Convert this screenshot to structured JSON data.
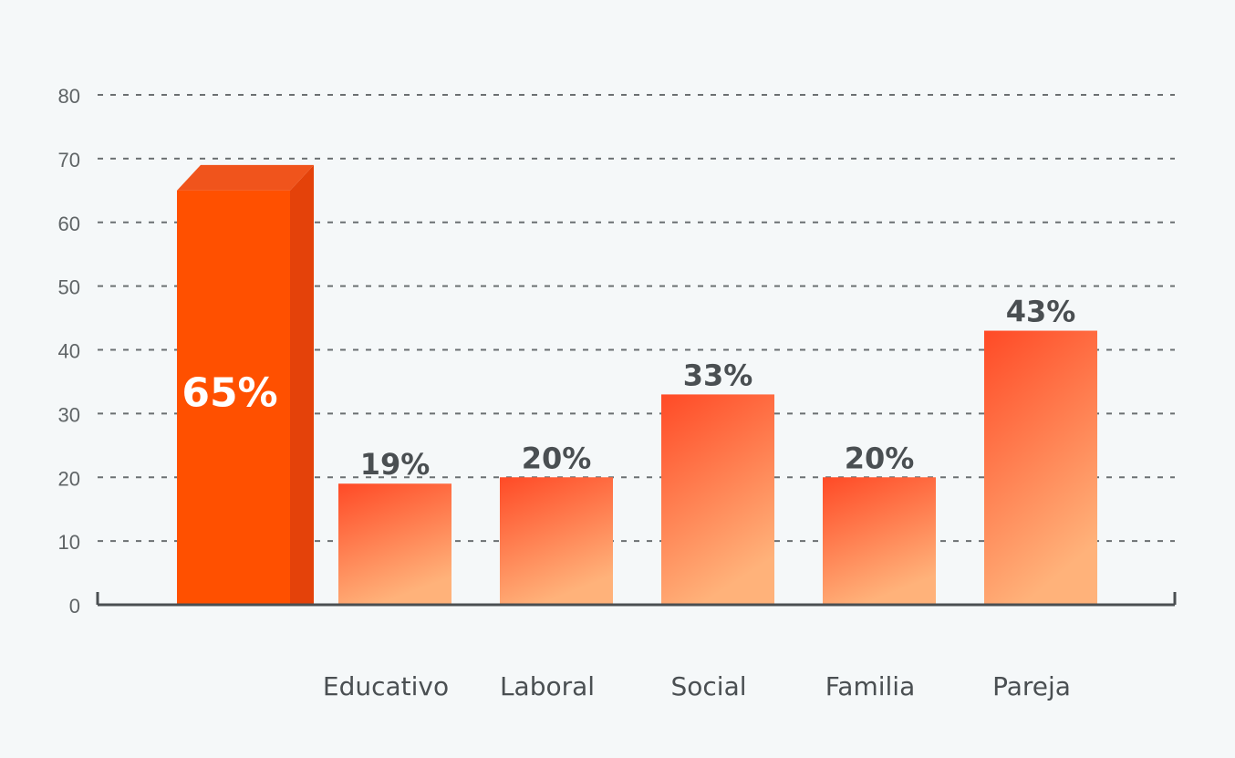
{
  "chart_data": {
    "type": "bar",
    "title": "",
    "xlabel": "",
    "ylabel": "",
    "ylim": [
      0,
      80
    ],
    "yticks": [
      0,
      10,
      20,
      30,
      40,
      50,
      60,
      70,
      80
    ],
    "grid": true,
    "categories": [
      "",
      "Educativo",
      "Laboral",
      "Social",
      "Familia",
      "Pareja"
    ],
    "values": [
      65,
      19,
      20,
      33,
      20,
      43
    ],
    "data_labels": [
      "65%",
      "19%",
      "20%",
      "33%",
      "20%",
      "43%"
    ],
    "highlight_index": 0
  },
  "colors": {
    "background": "#f5f8f9",
    "highlight_front": "#ff5000",
    "highlight_side": "#e4420a",
    "highlight_top": "#f0541c",
    "bar_gradient_top": "#ff4a26",
    "bar_gradient_bottom": "#ffb27a",
    "grid": "#6b7072",
    "axis": "#4a4f52"
  }
}
